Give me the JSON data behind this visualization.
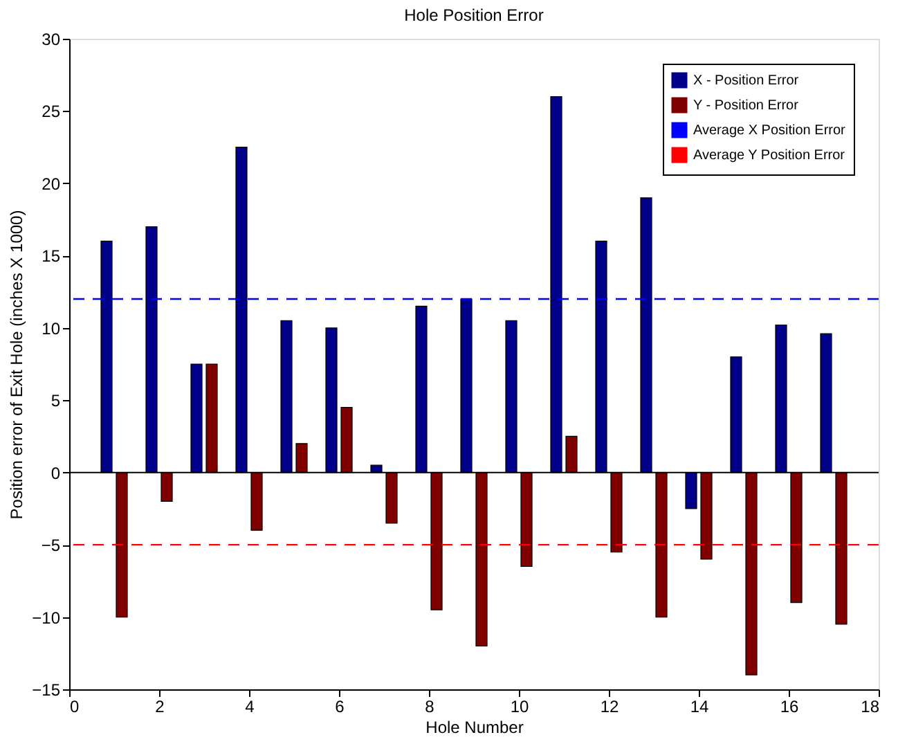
{
  "chart_data": {
    "type": "bar",
    "title": "Hole Position Error",
    "xlabel": "Hole Number",
    "ylabel": "Position error of Exit Hole (inches X 1000)",
    "x": [
      1,
      2,
      3,
      4,
      5,
      6,
      7,
      8,
      9,
      10,
      11,
      12,
      13,
      14,
      15,
      16,
      17
    ],
    "series": [
      {
        "name": "X - Position Error",
        "color": "#00008b",
        "values": [
          16,
          17,
          7.5,
          22.5,
          10.5,
          10,
          0.5,
          11.5,
          12,
          10.5,
          26,
          16,
          19,
          -2.5,
          8,
          10.2,
          9.6
        ]
      },
      {
        "name": "Y - Position Error",
        "color": "#800000",
        "values": [
          -10,
          -2,
          7.5,
          -4,
          2,
          4.5,
          -3.5,
          -9.5,
          -12,
          -6.5,
          2.5,
          -5.5,
          -10,
          -6,
          -14,
          -9,
          -10.5
        ]
      }
    ],
    "ref_lines": [
      {
        "axis": "y",
        "value": 12,
        "label": "Average X Position Error",
        "color": "#0000ff",
        "line_style": "dashed"
      },
      {
        "axis": "y",
        "value": -5,
        "label": "Average Y Position Error",
        "color": "#ff0000",
        "line_style": "dashed"
      },
      {
        "axis": "y",
        "value": 0,
        "color": "#000000",
        "line_style": "solid"
      }
    ],
    "xlim": [
      0,
      18
    ],
    "xticks": [
      0,
      2,
      4,
      6,
      8,
      10,
      12,
      14,
      16,
      18
    ],
    "ylim": [
      -15,
      30
    ],
    "yticks": [
      -15,
      -10,
      -5,
      0,
      5,
      10,
      15,
      20,
      25,
      30
    ],
    "grid": false,
    "legend": "top right"
  }
}
